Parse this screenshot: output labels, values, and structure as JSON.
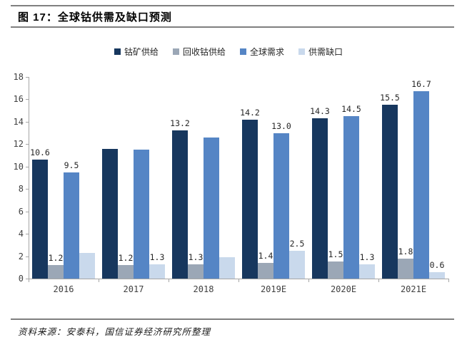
{
  "header": {
    "title": "图 17：全球钴供需及缺口预测"
  },
  "footer": {
    "source": "资料来源：安泰科，国信证券经济研究所整理"
  },
  "colors": {
    "series_dark_navy": "#17375E",
    "series_gray_blue": "#9BA7B6",
    "series_medium_blue": "#5585C5",
    "series_light_blue": "#C9D9EC",
    "axis_gray": "#A6A6A6",
    "rule_gray": "#7F7F7F"
  },
  "chart_data": {
    "type": "bar",
    "title": "图 17：全球钴供需及缺口预测",
    "categories": [
      "2016",
      "2017",
      "2018",
      "2019E",
      "2020E",
      "2021E"
    ],
    "series": [
      {
        "name": "钴矿供给",
        "color": "#17375E",
        "values": [
          10.6,
          11.6,
          13.2,
          14.2,
          14.3,
          15.5
        ],
        "shown_labels": [
          "10.6",
          null,
          "13.2",
          "14.2",
          "14.3",
          "15.5"
        ]
      },
      {
        "name": "回收钴供给",
        "color": "#9BA7B6",
        "values": [
          1.2,
          1.2,
          1.3,
          1.4,
          1.5,
          1.8
        ],
        "shown_labels": [
          "1.2",
          "1.2",
          "1.3",
          "1.4",
          "1.5",
          "1.8"
        ]
      },
      {
        "name": "全球需求",
        "color": "#5585C5",
        "values": [
          9.5,
          11.5,
          12.6,
          13.0,
          14.5,
          16.7
        ],
        "shown_labels": [
          "9.5",
          null,
          null,
          "13.0",
          "14.5",
          "16.7"
        ]
      },
      {
        "name": "供需缺口",
        "color": "#C9D9EC",
        "values": [
          2.3,
          1.3,
          1.9,
          2.5,
          1.3,
          0.6
        ],
        "shown_labels": [
          null,
          "1.3",
          null,
          "2.5",
          "1.3",
          "0.6"
        ]
      }
    ],
    "ylim": [
      0,
      18
    ],
    "ytick_step": 2,
    "grid": false,
    "legend_position": "top"
  }
}
